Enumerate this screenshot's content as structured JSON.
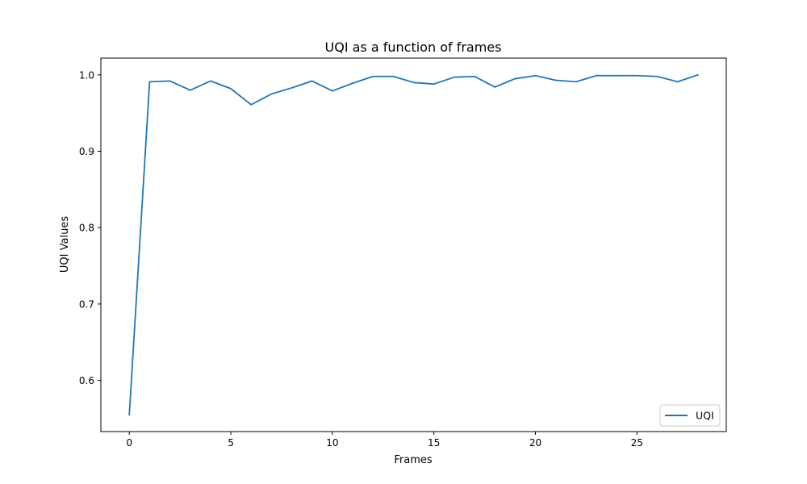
{
  "chart_data": {
    "type": "line",
    "title": "UQI as a function of frames",
    "xlabel": "Frames",
    "ylabel": "UQI Values",
    "xlim": [
      -1.4,
      29.4
    ],
    "ylim": [
      0.533,
      1.022
    ],
    "x_ticks": [
      0,
      5,
      10,
      15,
      20,
      25
    ],
    "x_tick_labels": [
      "0",
      "5",
      "10",
      "15",
      "20",
      "25"
    ],
    "y_ticks": [
      0.6,
      0.7,
      0.8,
      0.9,
      1.0
    ],
    "y_tick_labels": [
      "0.6",
      "0.7",
      "0.8",
      "0.9",
      "1.0"
    ],
    "grid": false,
    "legend": {
      "position": "lower-right",
      "entries": [
        "UQI"
      ]
    },
    "series": [
      {
        "name": "UQI",
        "color": "#1f77b4",
        "x": [
          0,
          1,
          2,
          3,
          4,
          5,
          6,
          7,
          8,
          9,
          10,
          11,
          12,
          13,
          14,
          15,
          16,
          17,
          18,
          19,
          20,
          21,
          22,
          23,
          24,
          25,
          26,
          27,
          28
        ],
        "values": [
          0.555,
          0.991,
          0.992,
          0.98,
          0.992,
          0.982,
          0.961,
          0.975,
          0.983,
          0.992,
          0.979,
          0.989,
          0.998,
          0.998,
          0.99,
          0.988,
          0.997,
          0.998,
          0.984,
          0.995,
          0.999,
          0.993,
          0.991,
          0.999,
          0.999,
          0.999,
          0.998,
          0.991,
          1.0
        ]
      }
    ]
  }
}
